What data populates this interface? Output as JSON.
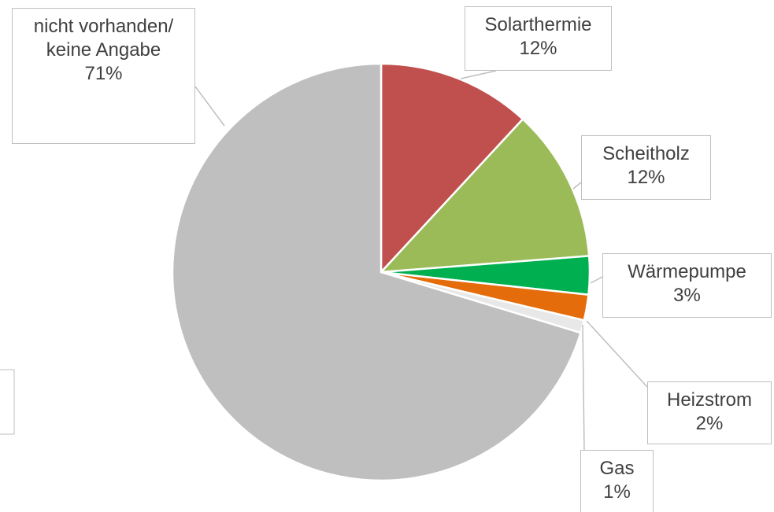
{
  "chart_data": {
    "type": "pie",
    "categories": [
      "Solarthermie",
      "Scheitholz",
      "Wärmepumpe",
      "Heizstrom",
      "Gas",
      "nicht vorhanden/ keine Angabe"
    ],
    "values": [
      12,
      12,
      3,
      2,
      1,
      71
    ],
    "value_labels": [
      "12%",
      "12%",
      "3%",
      "2%",
      "1%",
      "71%"
    ],
    "colors": [
      "#c0504d",
      "#9bbb59",
      "#00b050",
      "#e46c0a",
      "#e8e8e8",
      "#bfbfbf"
    ]
  }
}
